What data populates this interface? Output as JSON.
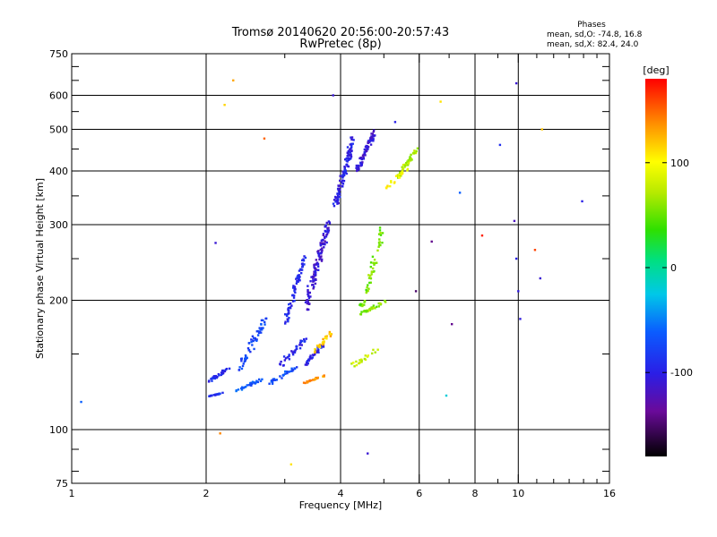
{
  "chart_data": {
    "type": "scatter",
    "title": "Tromsø 20140620 20:56:00-20:57:43",
    "subtitle": "RwPretec (8p)",
    "xlabel": "Frequency [MHz]",
    "ylabel": "Stationary phase Virtual Height [km]",
    "x_scale": "log",
    "y_scale": "log",
    "xlim": [
      1,
      16
    ],
    "ylim": [
      75,
      750
    ],
    "x_ticks": [
      {
        "value": 1,
        "label": "1"
      },
      {
        "value": 2,
        "label": "2"
      },
      {
        "value": 4,
        "label": "4"
      },
      {
        "value": 6,
        "label": "6"
      },
      {
        "value": 8,
        "label": "8"
      },
      {
        "value": 10,
        "label": "10"
      },
      {
        "value": 16,
        "label": "16"
      }
    ],
    "x_gridlines": [
      2,
      4,
      6,
      8,
      10
    ],
    "y_ticks": [
      {
        "value": 75,
        "label": "75"
      },
      {
        "value": 100,
        "label": "100"
      },
      {
        "value": 200,
        "label": "200"
      },
      {
        "value": 300,
        "label": "300"
      },
      {
        "value": 400,
        "label": "400"
      },
      {
        "value": 500,
        "label": "500"
      },
      {
        "value": 600,
        "label": "600"
      },
      {
        "value": 750,
        "label": "750"
      }
    ],
    "y_gridlines": [
      100,
      200,
      300,
      400,
      500,
      600
    ],
    "grid": true,
    "info": {
      "heading": "Phases",
      "line_o": "mean, sd,O: -74.8, 16.8",
      "line_x": "mean, sd,X:  82.4, 24.0"
    },
    "colorbar": {
      "label": "[deg]",
      "range": [
        -180,
        180
      ],
      "ticks": [
        {
          "value": 100,
          "label": "100"
        },
        {
          "value": 0,
          "label": "0"
        },
        {
          "value": -100,
          "label": "-100"
        }
      ]
    },
    "clusters": [
      {
        "x": [
          2.0,
          2.2
        ],
        "y": [
          119,
          122
        ],
        "phase": -85,
        "n": 18
      },
      {
        "x": [
          2.0,
          2.3
        ],
        "y": [
          128,
          142
        ],
        "phase": -95,
        "n": 30
      },
      {
        "x": [
          2.3,
          2.7
        ],
        "y": [
          122,
          132
        ],
        "phase": -65,
        "n": 28
      },
      {
        "x": [
          2.35,
          2.75
        ],
        "y": [
          135,
          185
        ],
        "phase": -75,
        "n": 55
      },
      {
        "x": [
          2.7,
          3.2
        ],
        "y": [
          126,
          140
        ],
        "phase": -72,
        "n": 30
      },
      {
        "x": [
          2.9,
          3.4
        ],
        "y": [
          140,
          165
        ],
        "phase": -95,
        "n": 35
      },
      {
        "x": [
          3.0,
          3.35
        ],
        "y": [
          175,
          260
        ],
        "phase": -95,
        "n": 70
      },
      {
        "x": [
          3.3,
          3.8
        ],
        "y": [
          185,
          310
        ],
        "phase": -110,
        "n": 120
      },
      {
        "x": [
          3.3,
          3.7
        ],
        "y": [
          140,
          160
        ],
        "phase": -100,
        "n": 35
      },
      {
        "x": [
          3.45,
          3.85
        ],
        "y": [
          150,
          170
        ],
        "phase": 120,
        "n": 25
      },
      {
        "x": [
          3.3,
          3.7
        ],
        "y": [
          128,
          134
        ],
        "phase": 135,
        "n": 22
      },
      {
        "x": [
          3.85,
          4.3
        ],
        "y": [
          320,
          490
        ],
        "phase": -100,
        "n": 110
      },
      {
        "x": [
          4.3,
          4.8
        ],
        "y": [
          390,
          500
        ],
        "phase": -110,
        "n": 90
      },
      {
        "x": [
          4.4,
          5.0
        ],
        "y": [
          180,
          300
        ],
        "phase": 55,
        "n": 55
      },
      {
        "x": [
          4.4,
          5.1
        ],
        "y": [
          185,
          200
        ],
        "phase": 60,
        "n": 30
      },
      {
        "x": [
          4.2,
          4.9
        ],
        "y": [
          140,
          155
        ],
        "phase": 80,
        "n": 20
      },
      {
        "x": [
          5.3,
          6.0
        ],
        "y": [
          380,
          460
        ],
        "phase": 70,
        "n": 45
      },
      {
        "x": [
          5.0,
          5.7
        ],
        "y": [
          360,
          410
        ],
        "phase": 100,
        "n": 20
      }
    ],
    "outliers": [
      {
        "x": 1.05,
        "y": 116,
        "phase": -60
      },
      {
        "x": 2.1,
        "y": 272,
        "phase": -110
      },
      {
        "x": 2.15,
        "y": 98,
        "phase": 140
      },
      {
        "x": 2.2,
        "y": 570,
        "phase": 115
      },
      {
        "x": 2.3,
        "y": 650,
        "phase": 130
      },
      {
        "x": 2.7,
        "y": 476,
        "phase": 150
      },
      {
        "x": 3.1,
        "y": 83,
        "phase": 110
      },
      {
        "x": 3.85,
        "y": 600,
        "phase": -110
      },
      {
        "x": 4.6,
        "y": 88,
        "phase": -110
      },
      {
        "x": 5.3,
        "y": 520,
        "phase": -100
      },
      {
        "x": 5.9,
        "y": 210,
        "phase": -150
      },
      {
        "x": 6.4,
        "y": 274,
        "phase": -140
      },
      {
        "x": 6.7,
        "y": 580,
        "phase": 110
      },
      {
        "x": 6.9,
        "y": 120,
        "phase": -20
      },
      {
        "x": 7.1,
        "y": 176,
        "phase": -140
      },
      {
        "x": 7.4,
        "y": 356,
        "phase": -60
      },
      {
        "x": 8.3,
        "y": 283,
        "phase": 170
      },
      {
        "x": 9.1,
        "y": 460,
        "phase": -90
      },
      {
        "x": 9.9,
        "y": 640,
        "phase": -110
      },
      {
        "x": 9.8,
        "y": 306,
        "phase": -120
      },
      {
        "x": 9.9,
        "y": 250,
        "phase": -100
      },
      {
        "x": 10.0,
        "y": 210,
        "phase": -105
      },
      {
        "x": 10.1,
        "y": 181,
        "phase": -105
      },
      {
        "x": 10.9,
        "y": 262,
        "phase": 160
      },
      {
        "x": 11.2,
        "y": 225,
        "phase": -110
      },
      {
        "x": 11.3,
        "y": 500,
        "phase": 120
      },
      {
        "x": 13.9,
        "y": 340,
        "phase": -100
      }
    ]
  }
}
